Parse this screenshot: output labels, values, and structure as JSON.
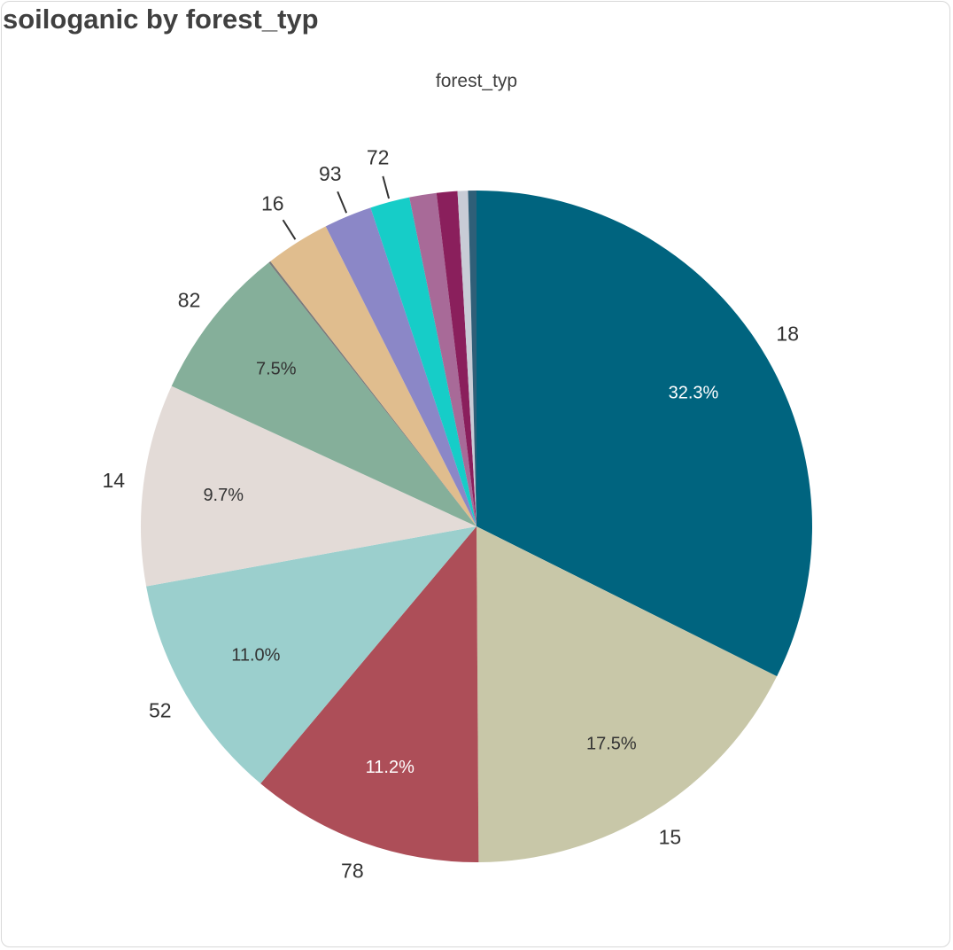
{
  "title": "soiloganic by forest_typ",
  "legend_title": "forest_typ",
  "chart_data": {
    "type": "pie",
    "title": "soiloganic by forest_typ",
    "legend_title": "forest_typ",
    "slices": [
      {
        "category": "18",
        "percent": 32.3,
        "percent_label": "32.3%",
        "color": "#00647f",
        "label_color": "#ffffff"
      },
      {
        "category": "15",
        "percent": 17.5,
        "percent_label": "17.5%",
        "color": "#c8c7a8",
        "label_color": "#333333"
      },
      {
        "category": "78",
        "percent": 11.2,
        "percent_label": "11.2%",
        "color": "#ad4e58",
        "label_color": "#ffffff"
      },
      {
        "category": "52",
        "percent": 11.0,
        "percent_label": "11.0%",
        "color": "#9bcfcd",
        "label_color": "#333333"
      },
      {
        "category": "14",
        "percent": 9.7,
        "percent_label": "9.7%",
        "color": "#e3dbd7",
        "label_color": "#333333"
      },
      {
        "category": "82",
        "percent": 7.5,
        "percent_label": "7.5%",
        "color": "#85af9a",
        "label_color": "#333333"
      },
      {
        "category": "",
        "percent": 0.1,
        "percent_label": "",
        "color": "#7a7a7a",
        "label_color": "#333333"
      },
      {
        "category": "16",
        "percent": 3.1,
        "percent_label": "",
        "color": "#e0bd8e",
        "label_color": "#333333"
      },
      {
        "category": "93",
        "percent": 2.3,
        "percent_label": "",
        "color": "#8b87c7",
        "label_color": "#333333"
      },
      {
        "category": "72",
        "percent": 1.9,
        "percent_label": "",
        "color": "#16cdc8",
        "label_color": "#333333"
      },
      {
        "category": "",
        "percent": 1.3,
        "percent_label": "",
        "color": "#a86a98",
        "label_color": "#333333"
      },
      {
        "category": "",
        "percent": 1.0,
        "percent_label": "",
        "color": "#8a1f5c",
        "label_color": "#333333"
      },
      {
        "category": "",
        "percent": 0.5,
        "percent_label": "",
        "color": "#c8ccd6",
        "label_color": "#333333"
      },
      {
        "category": "",
        "percent": 0.4,
        "percent_label": "",
        "color": "#2f5f78",
        "label_color": "#333333"
      }
    ]
  }
}
